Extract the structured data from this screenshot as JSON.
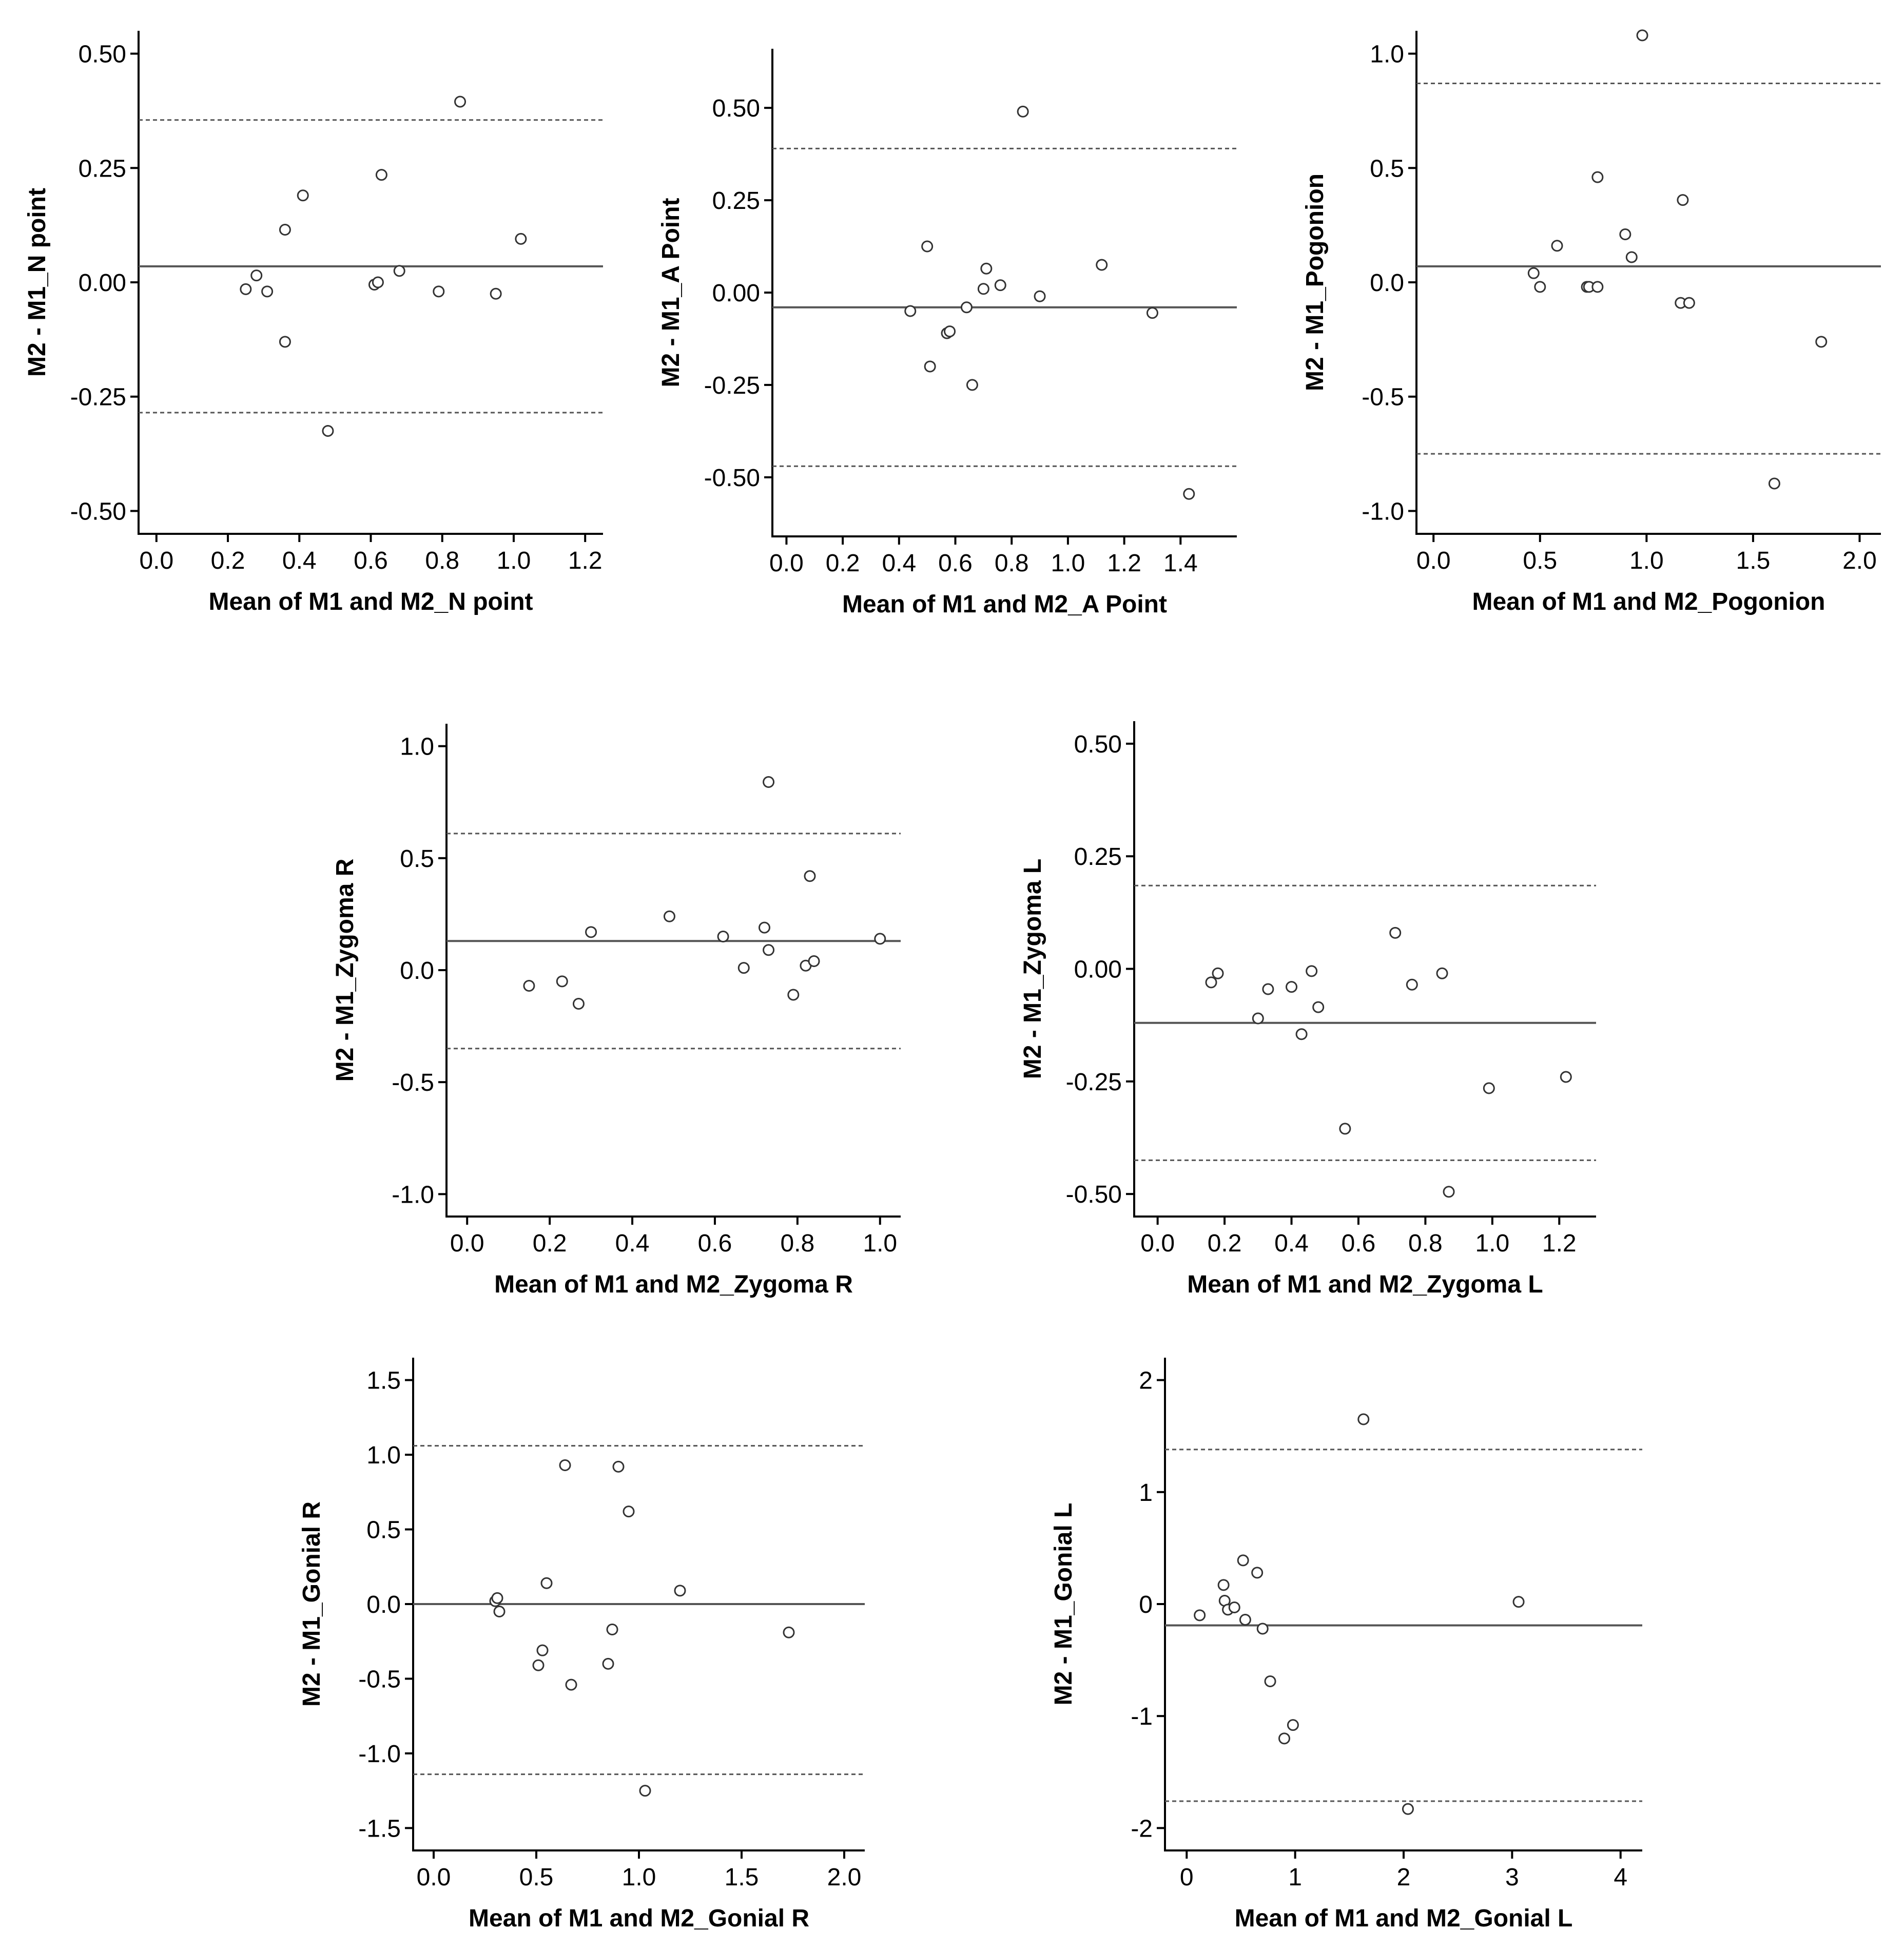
{
  "chart_data": [
    {
      "type": "scatter",
      "id": "n-point",
      "xlabel": "Mean of M1 and M2_N point",
      "ylabel": "M2 - M1_N point",
      "xlim": [
        -0.05,
        1.25
      ],
      "ylim": [
        -0.55,
        0.55
      ],
      "xticks": [
        {
          "v": 0.0,
          "label": "0.0"
        },
        {
          "v": 0.2,
          "label": "0.2"
        },
        {
          "v": 0.4,
          "label": "0.4"
        },
        {
          "v": 0.6,
          "label": "0.6"
        },
        {
          "v": 0.8,
          "label": "0.8"
        },
        {
          "v": 1.0,
          "label": "1.0"
        },
        {
          "v": 1.2,
          "label": "1.2"
        }
      ],
      "yticks": [
        {
          "v": 0.5,
          "label": "0.50"
        },
        {
          "v": 0.25,
          "label": "0.25"
        },
        {
          "v": 0.0,
          "label": "0.00"
        },
        {
          "v": -0.25,
          "label": "-0.25"
        },
        {
          "v": -0.5,
          "label": "-0.50"
        }
      ],
      "mean_diff": 0.035,
      "upper_loa": 0.355,
      "lower_loa": -0.285,
      "x": [
        0.25,
        0.28,
        0.31,
        0.36,
        0.36,
        0.41,
        0.48,
        0.61,
        0.62,
        0.63,
        0.68,
        0.79,
        0.85,
        0.95,
        1.02
      ],
      "y": [
        -0.015,
        0.015,
        -0.02,
        0.115,
        -0.13,
        0.19,
        -0.325,
        -0.005,
        0.0,
        0.235,
        0.025,
        -0.02,
        0.395,
        -0.025,
        0.095
      ]
    },
    {
      "type": "scatter",
      "id": "a-point",
      "xlabel": "Mean of M1 and M2_A Point",
      "ylabel": "M2 - M1_A Point",
      "xlim": [
        -0.05,
        1.6
      ],
      "ylim": [
        -0.66,
        0.66
      ],
      "xticks": [
        {
          "v": 0.0,
          "label": "0.0"
        },
        {
          "v": 0.2,
          "label": "0.2"
        },
        {
          "v": 0.4,
          "label": "0.4"
        },
        {
          "v": 0.6,
          "label": "0.6"
        },
        {
          "v": 0.8,
          "label": "0.8"
        },
        {
          "v": 1.0,
          "label": "1.0"
        },
        {
          "v": 1.2,
          "label": "1.2"
        },
        {
          "v": 1.4,
          "label": "1.4"
        }
      ],
      "yticks": [
        {
          "v": 0.5,
          "label": "0.50"
        },
        {
          "v": 0.25,
          "label": "0.25"
        },
        {
          "v": 0.0,
          "label": "0.00"
        },
        {
          "v": -0.25,
          "label": "-0.25"
        },
        {
          "v": -0.5,
          "label": "-0.50"
        }
      ],
      "mean_diff": -0.04,
      "upper_loa": 0.39,
      "lower_loa": -0.47,
      "x": [
        0.44,
        0.5,
        0.51,
        0.57,
        0.58,
        0.64,
        0.66,
        0.7,
        0.71,
        0.76,
        0.84,
        0.9,
        1.12,
        1.3,
        1.43
      ],
      "y": [
        -0.05,
        0.125,
        -0.2,
        -0.11,
        -0.105,
        -0.04,
        -0.25,
        0.01,
        0.065,
        0.02,
        0.49,
        -0.01,
        0.075,
        -0.055,
        -0.545
      ]
    },
    {
      "type": "scatter",
      "id": "pogonion",
      "xlabel": "Mean of M1 and M2_Pogonion",
      "ylabel": "M2 - M1_Pogonion",
      "xlim": [
        -0.08,
        2.1
      ],
      "ylim": [
        -1.1,
        1.1
      ],
      "xticks": [
        {
          "v": 0.0,
          "label": "0.0"
        },
        {
          "v": 0.5,
          "label": "0.5"
        },
        {
          "v": 1.0,
          "label": "1.0"
        },
        {
          "v": 1.5,
          "label": "1.5"
        },
        {
          "v": 2.0,
          "label": "2.0"
        }
      ],
      "yticks": [
        {
          "v": 1.0,
          "label": "1.0"
        },
        {
          "v": 0.5,
          "label": "0.5"
        },
        {
          "v": 0.0,
          "label": "0.0"
        },
        {
          "v": -0.5,
          "label": "-0.5"
        },
        {
          "v": -1.0,
          "label": "-1.0"
        }
      ],
      "mean_diff": 0.07,
      "upper_loa": 0.87,
      "lower_loa": -0.75,
      "x": [
        0.47,
        0.5,
        0.58,
        0.72,
        0.73,
        0.77,
        0.77,
        0.9,
        0.93,
        0.98,
        1.16,
        1.17,
        1.2,
        1.6,
        1.82
      ],
      "y": [
        0.04,
        -0.02,
        0.16,
        -0.02,
        -0.02,
        0.46,
        -0.02,
        0.21,
        0.11,
        1.08,
        -0.09,
        0.36,
        -0.09,
        -0.88,
        -0.26
      ]
    },
    {
      "type": "scatter",
      "id": "zygoma-r",
      "xlabel": "Mean of M1 and M2_Zygoma R",
      "ylabel": "M2 - M1_Zygoma R",
      "xlim": [
        -0.05,
        1.05
      ],
      "ylim": [
        -1.1,
        1.1
      ],
      "xticks": [
        {
          "v": 0.0,
          "label": "0.0"
        },
        {
          "v": 0.2,
          "label": "0.2"
        },
        {
          "v": 0.4,
          "label": "0.4"
        },
        {
          "v": 0.6,
          "label": "0.6"
        },
        {
          "v": 0.8,
          "label": "0.8"
        },
        {
          "v": 1.0,
          "label": "1.0"
        }
      ],
      "yticks": [
        {
          "v": 1.0,
          "label": "1.0"
        },
        {
          "v": 0.5,
          "label": "0.5"
        },
        {
          "v": 0.0,
          "label": "0.0"
        },
        {
          "v": -0.5,
          "label": "-0.5"
        },
        {
          "v": -1.0,
          "label": "-1.0"
        }
      ],
      "mean_diff": 0.13,
      "upper_loa": 0.61,
      "lower_loa": -0.35,
      "x": [
        0.15,
        0.23,
        0.27,
        0.3,
        0.49,
        0.62,
        0.67,
        0.72,
        0.73,
        0.73,
        0.79,
        0.82,
        0.83,
        0.84,
        1.0
      ],
      "y": [
        -0.07,
        -0.05,
        -0.15,
        0.17,
        0.24,
        0.15,
        0.01,
        0.19,
        0.09,
        0.84,
        -0.11,
        0.02,
        0.42,
        0.04,
        0.14
      ]
    },
    {
      "type": "scatter",
      "id": "zygoma-l",
      "xlabel": "Mean of M1 and M2_Zygoma L",
      "ylabel": "M2 - M1_Zygoma L",
      "xlim": [
        -0.07,
        1.31
      ],
      "ylim": [
        -0.55,
        0.55
      ],
      "xticks": [
        {
          "v": 0.0,
          "label": "0.0"
        },
        {
          "v": 0.2,
          "label": "0.2"
        },
        {
          "v": 0.4,
          "label": "0.4"
        },
        {
          "v": 0.6,
          "label": "0.6"
        },
        {
          "v": 0.8,
          "label": "0.8"
        },
        {
          "v": 1.0,
          "label": "1.0"
        },
        {
          "v": 1.2,
          "label": "1.2"
        }
      ],
      "yticks": [
        {
          "v": 0.5,
          "label": "0.50"
        },
        {
          "v": 0.25,
          "label": "0.25"
        },
        {
          "v": 0.0,
          "label": "0.00"
        },
        {
          "v": -0.25,
          "label": "-0.25"
        },
        {
          "v": -0.5,
          "label": "-0.50"
        }
      ],
      "mean_diff": -0.12,
      "upper_loa": 0.185,
      "lower_loa": -0.425,
      "x": [
        0.16,
        0.18,
        0.3,
        0.33,
        0.4,
        0.43,
        0.46,
        0.48,
        0.56,
        0.71,
        0.76,
        0.85,
        0.87,
        0.99,
        1.22
      ],
      "y": [
        -0.03,
        -0.01,
        -0.11,
        -0.045,
        -0.04,
        -0.145,
        -0.005,
        -0.085,
        -0.355,
        0.08,
        -0.035,
        -0.01,
        -0.495,
        -0.265,
        -0.24
      ]
    },
    {
      "type": "scatter",
      "id": "gonial-r",
      "xlabel": "Mean of M1 and M2_Gonial R",
      "ylabel": "M2 - M1_Gonial R",
      "xlim": [
        -0.1,
        2.1
      ],
      "ylim": [
        -1.65,
        1.65
      ],
      "xticks": [
        {
          "v": 0.0,
          "label": "0.0"
        },
        {
          "v": 0.5,
          "label": "0.5"
        },
        {
          "v": 1.0,
          "label": "1.0"
        },
        {
          "v": 1.5,
          "label": "1.5"
        },
        {
          "v": 2.0,
          "label": "2.0"
        }
      ],
      "yticks": [
        {
          "v": 1.5,
          "label": "1.5"
        },
        {
          "v": 1.0,
          "label": "1.0"
        },
        {
          "v": 0.5,
          "label": "0.5"
        },
        {
          "v": 0.0,
          "label": "0.0"
        },
        {
          "v": -0.5,
          "label": "-0.5"
        },
        {
          "v": -1.0,
          "label": "-1.0"
        },
        {
          "v": -1.5,
          "label": "-1.5"
        }
      ],
      "mean_diff": 0.0,
      "upper_loa": 1.06,
      "lower_loa": -1.14,
      "x": [
        0.3,
        0.31,
        0.32,
        0.51,
        0.53,
        0.55,
        0.64,
        0.67,
        0.85,
        0.87,
        0.9,
        0.95,
        1.03,
        1.2,
        1.73
      ],
      "y": [
        0.02,
        0.04,
        -0.05,
        -0.41,
        -0.31,
        0.14,
        0.93,
        -0.54,
        -0.4,
        -0.17,
        0.92,
        0.62,
        -1.25,
        0.09,
        -0.19
      ]
    },
    {
      "type": "scatter",
      "id": "gonial-l",
      "xlabel": "Mean of M1 and M2_Gonial L",
      "ylabel": "M2 - M1_Gonial L",
      "xlim": [
        -0.2,
        4.2
      ],
      "ylim": [
        -2.2,
        2.2
      ],
      "xticks": [
        {
          "v": 0,
          "label": "0"
        },
        {
          "v": 1,
          "label": "1"
        },
        {
          "v": 2,
          "label": "2"
        },
        {
          "v": 3,
          "label": "3"
        },
        {
          "v": 4,
          "label": "4"
        }
      ],
      "yticks": [
        {
          "v": 2,
          "label": "2"
        },
        {
          "v": 1,
          "label": "1"
        },
        {
          "v": 0,
          "label": "0"
        },
        {
          "v": -1,
          "label": "-1"
        },
        {
          "v": -2,
          "label": "-2"
        }
      ],
      "mean_diff": -0.19,
      "upper_loa": 1.38,
      "lower_loa": -1.76,
      "x": [
        0.12,
        0.34,
        0.35,
        0.38,
        0.44,
        0.52,
        0.54,
        0.65,
        0.7,
        0.77,
        0.9,
        0.98,
        1.63,
        2.04,
        3.06
      ],
      "y": [
        -0.1,
        0.17,
        0.03,
        -0.05,
        -0.03,
        0.39,
        -0.14,
        0.28,
        -0.22,
        -0.69,
        -1.2,
        -1.08,
        1.65,
        -1.83,
        0.02
      ]
    }
  ]
}
